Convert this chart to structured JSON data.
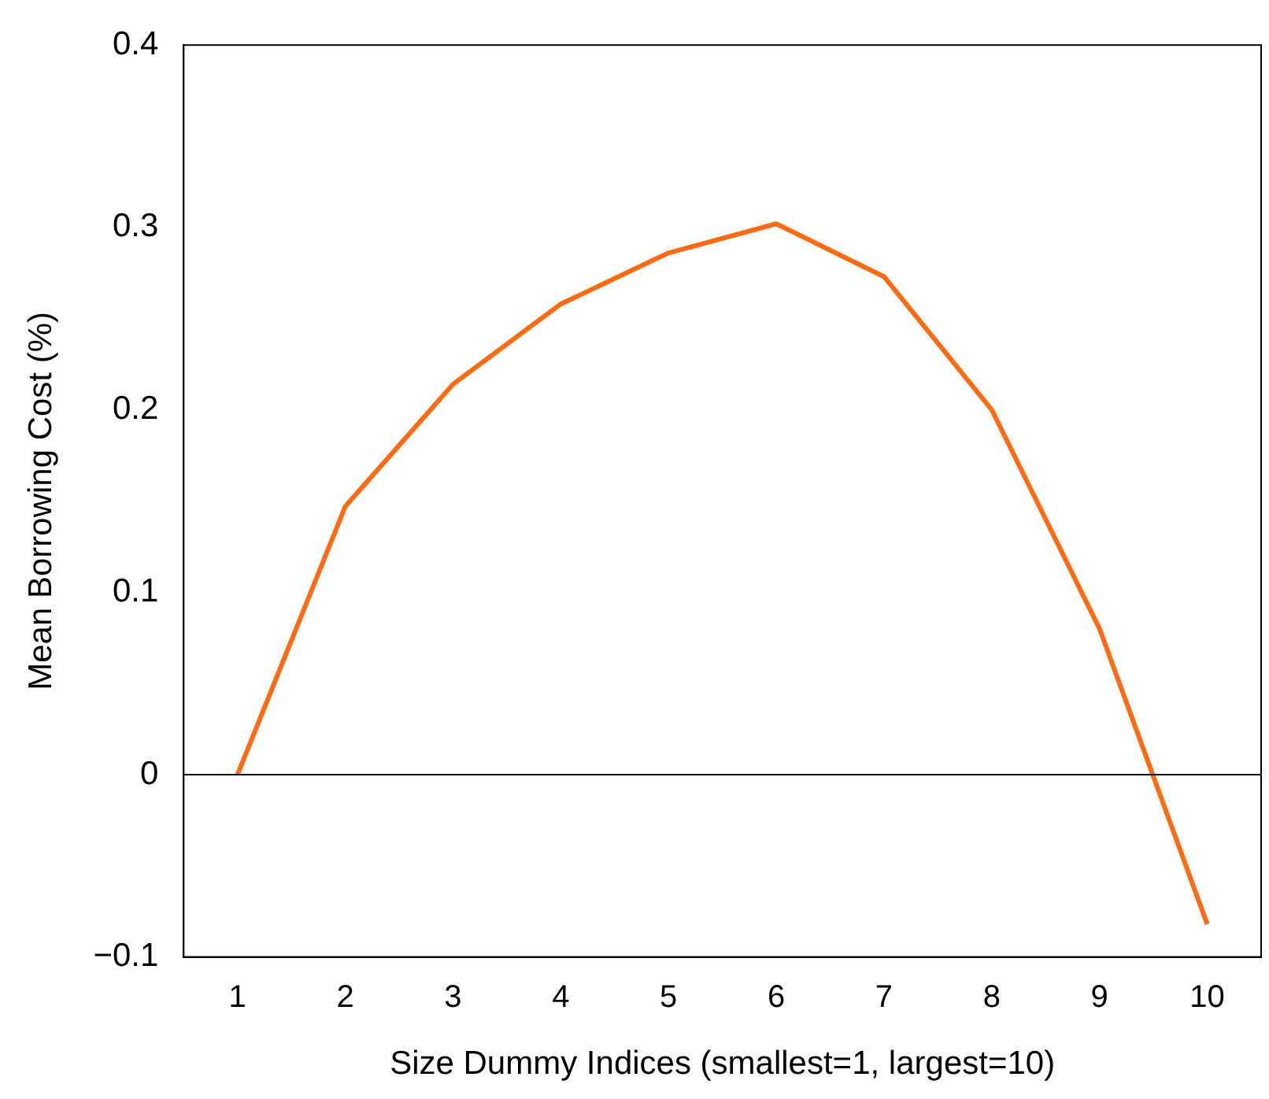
{
  "chart_data": {
    "type": "line",
    "xlabel": "Size Dummy Indices (smallest=1, largest=10)",
    "ylabel": "Mean Borrowing Cost (%)",
    "categories": [
      "1",
      "2",
      "3",
      "4",
      "5",
      "6",
      "7",
      "8",
      "9",
      "10"
    ],
    "series": [
      {
        "color": "#ff6a13",
        "values": [
          0,
          0.147,
          0.214,
          0.258,
          0.286,
          0.302,
          0.273,
          0.2,
          0.08,
          -0.082
        ]
      }
    ],
    "ylim": [
      -0.1,
      0.4
    ],
    "yticks": [
      {
        "value": -0.1,
        "label": "−0.1"
      },
      0,
      0.1,
      0.2,
      0.3,
      0.4
    ],
    "ref_lines": [
      {
        "axis": "y",
        "value": 0,
        "color": "#000000"
      }
    ],
    "grid": false,
    "legend": false,
    "marker": "none",
    "line_style": "solid"
  }
}
